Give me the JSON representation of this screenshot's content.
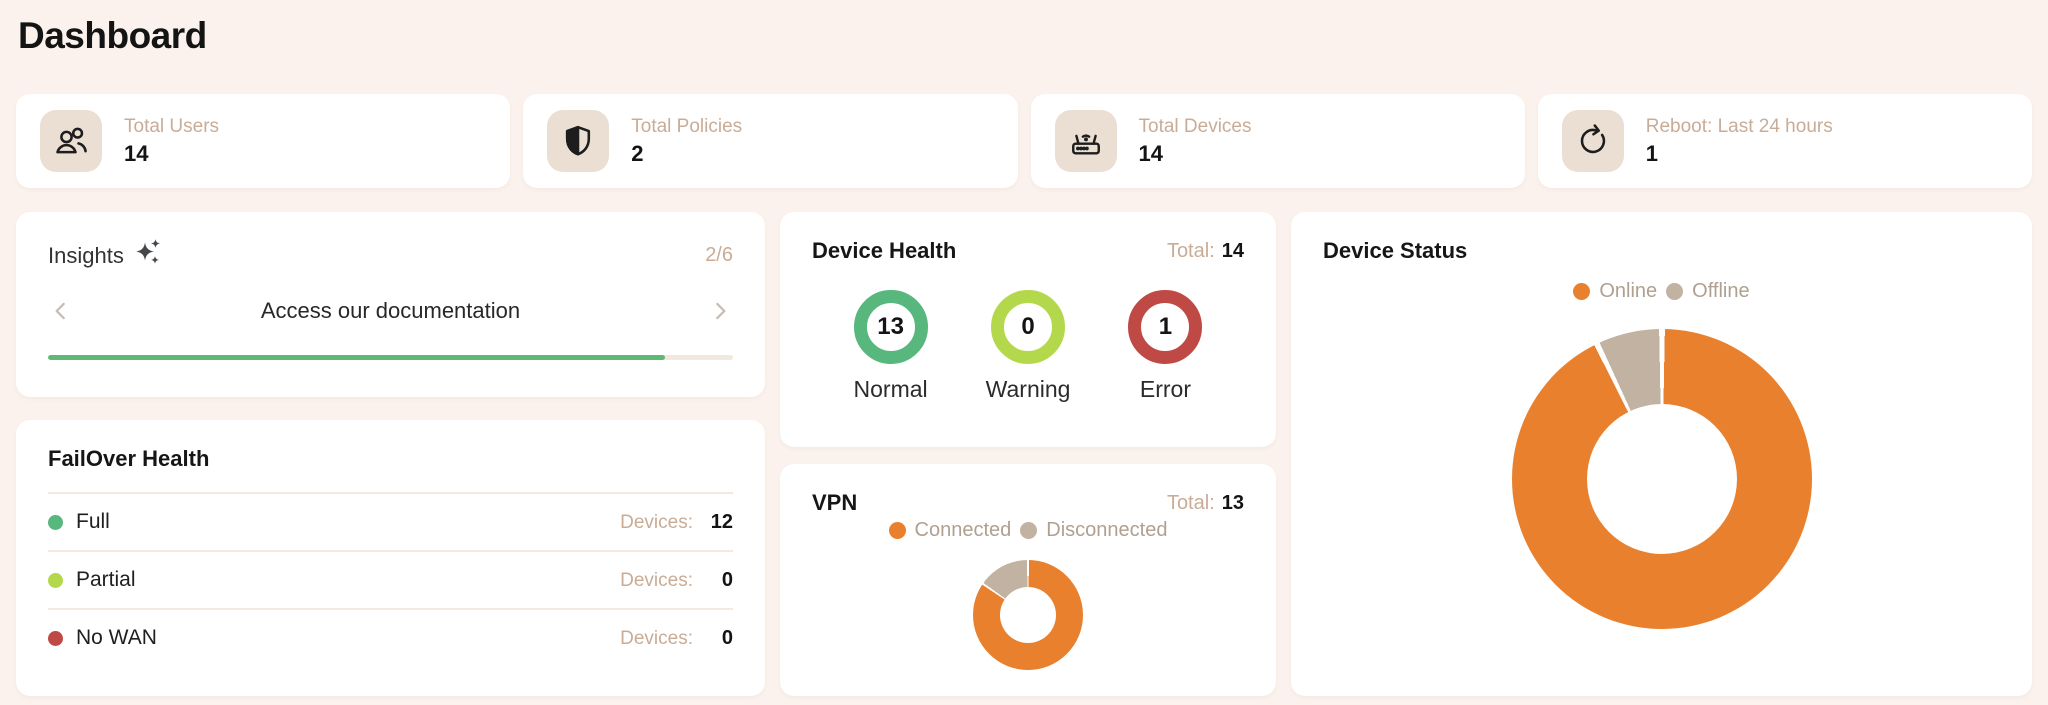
{
  "page": {
    "title": "Dashboard"
  },
  "colors": {
    "background": "#FBF2ED",
    "card": "#FFFFFF",
    "chip": "#EBDFD3",
    "tan_text": "#C9AC96",
    "legend_text": "#AFA091",
    "orange": "#E8802E",
    "tan_slice": "#C2B2A1",
    "green": "#57B77D",
    "lime": "#B4D84B",
    "red": "#BF4A45",
    "progress_green": "#5EB975"
  },
  "stats": [
    {
      "icon": "users-icon",
      "label": "Total Users",
      "value": "14"
    },
    {
      "icon": "shield-icon",
      "label": "Total Policies",
      "value": "2"
    },
    {
      "icon": "router-icon",
      "label": "Total Devices",
      "value": "14"
    },
    {
      "icon": "reboot-icon",
      "label": "Reboot: Last 24 hours",
      "value": "1"
    }
  ],
  "insights": {
    "title": "Insights",
    "icon": "sparkles-icon",
    "counter": "2/6",
    "slide_text": "Access our documentation",
    "progress_percent": 90
  },
  "failover": {
    "title": "FailOver Health",
    "rows": [
      {
        "label": "Full",
        "color": "#57B77D",
        "devices_label": "Devices:",
        "value": "12"
      },
      {
        "label": "Partial",
        "color": "#B4D84B",
        "devices_label": "Devices:",
        "value": "0"
      },
      {
        "label": "No WAN",
        "color": "#BF4A45",
        "devices_label": "Devices:",
        "value": "0"
      }
    ]
  },
  "device_health": {
    "title": "Device Health",
    "total_label": "Total:",
    "total_value": "14",
    "items": [
      {
        "label": "Normal",
        "value": "13",
        "color": "#57B77D"
      },
      {
        "label": "Warning",
        "value": "0",
        "color": "#B4D84B"
      },
      {
        "label": "Error",
        "value": "1",
        "color": "#BF4A45"
      }
    ]
  },
  "vpn": {
    "title": "VPN",
    "total_label": "Total:",
    "total_value": "13"
  },
  "device_status": {
    "title": "Device Status"
  },
  "chart_data": [
    {
      "type": "pie",
      "title": "VPN",
      "donut": true,
      "legend_position": "top",
      "labels": [
        "Connected",
        "Disconnected"
      ],
      "values": [
        11,
        2
      ],
      "total": 13,
      "colors": [
        "#E8802E",
        "#C2B2A1"
      ]
    },
    {
      "type": "pie",
      "title": "Device Status",
      "donut": true,
      "legend_position": "top",
      "labels": [
        "Online",
        "Offline"
      ],
      "values": [
        13,
        1
      ],
      "total": 14,
      "colors": [
        "#E8802E",
        "#C2B2A1"
      ]
    }
  ]
}
